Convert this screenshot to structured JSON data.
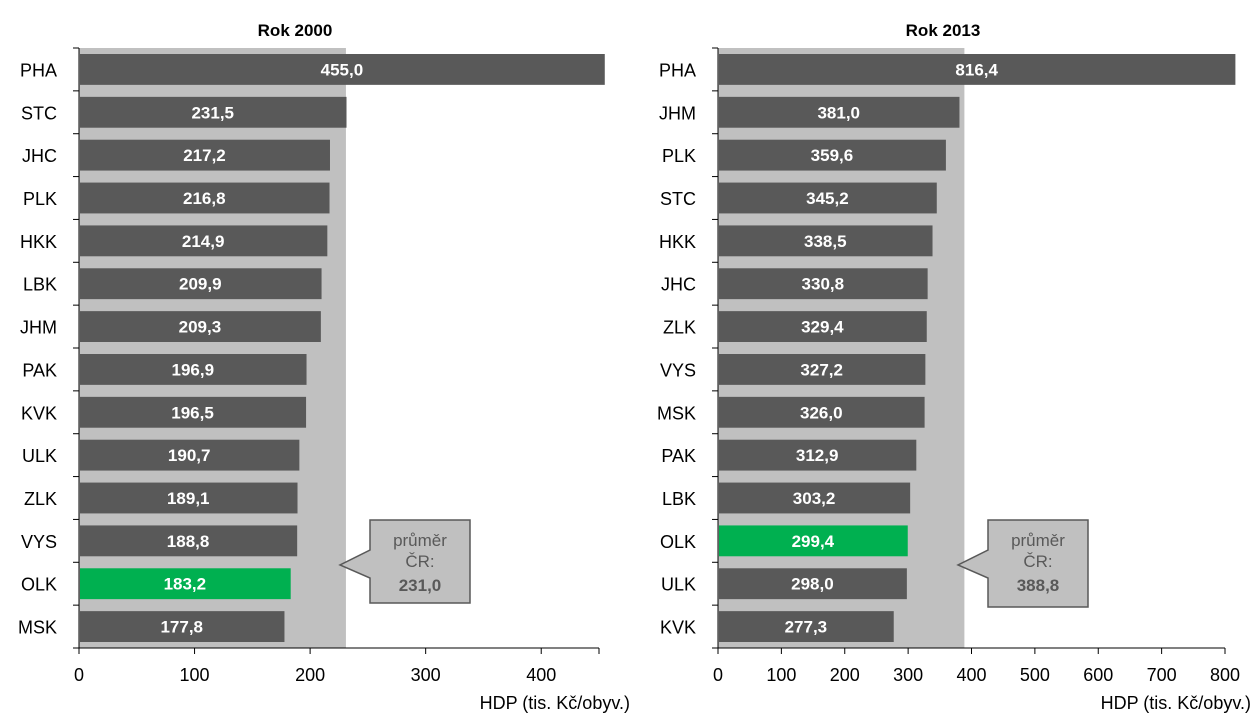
{
  "chart_data": [
    {
      "type": "bar",
      "orientation": "horizontal",
      "title": "Rok 2000",
      "xlabel": "HDP (tis. Kč/obyv.)",
      "xlim": [
        0,
        450
      ],
      "xticks": [
        0,
        100,
        200,
        300,
        400
      ],
      "categories": [
        "PHA",
        "STC",
        "JHC",
        "PLK",
        "HKK",
        "LBK",
        "JHM",
        "PAK",
        "KVK",
        "ULK",
        "ZLK",
        "VYS",
        "OLK",
        "MSK"
      ],
      "values": [
        455.0,
        231.5,
        217.2,
        216.8,
        214.9,
        209.9,
        209.3,
        196.9,
        196.5,
        190.7,
        189.1,
        188.8,
        183.2,
        177.8
      ],
      "value_labels": [
        "455,0",
        "231,5",
        "217,2",
        "216,8",
        "214,9",
        "209,9",
        "209,3",
        "196,9",
        "196,5",
        "190,7",
        "189,1",
        "188,8",
        "183,2",
        "177,8"
      ],
      "highlight_category": "OLK",
      "average": {
        "value": 231.0,
        "label_line1": "průměr",
        "label_line2": "ČR:",
        "label_value": "231,0"
      },
      "colors": {
        "bar": "#595959",
        "highlight": "#00b050",
        "average_band": "#c0c0c0",
        "callout_fill": "#c0c0c0",
        "callout_border": "#595959"
      },
      "grid": false
    },
    {
      "type": "bar",
      "orientation": "horizontal",
      "title": "Rok 2013",
      "xlabel": "HDP (tis. Kč/obyv.)",
      "xlim": [
        0,
        800
      ],
      "xticks": [
        0,
        100,
        200,
        300,
        400,
        500,
        600,
        700,
        800
      ],
      "categories": [
        "PHA",
        "JHM",
        "PLK",
        "STC",
        "HKK",
        "JHC",
        "ZLK",
        "VYS",
        "MSK",
        "PAK",
        "LBK",
        "OLK",
        "ULK",
        "KVK"
      ],
      "values": [
        816.4,
        381.0,
        359.6,
        345.2,
        338.5,
        330.8,
        329.4,
        327.2,
        326.0,
        312.9,
        303.2,
        299.4,
        298.0,
        277.3
      ],
      "value_labels": [
        "816,4",
        "381,0",
        "359,6",
        "345,2",
        "338,5",
        "330,8",
        "329,4",
        "327,2",
        "326,0",
        "312,9",
        "303,2",
        "299,4",
        "298,0",
        "277,3"
      ],
      "highlight_category": "OLK",
      "average": {
        "value": 388.8,
        "label_line1": "průměr",
        "label_line2": "ČR:",
        "label_value": "388,8"
      },
      "colors": {
        "bar": "#595959",
        "highlight": "#00b050",
        "average_band": "#c0c0c0",
        "callout_fill": "#c0c0c0",
        "callout_border": "#595959"
      },
      "grid": false
    }
  ]
}
